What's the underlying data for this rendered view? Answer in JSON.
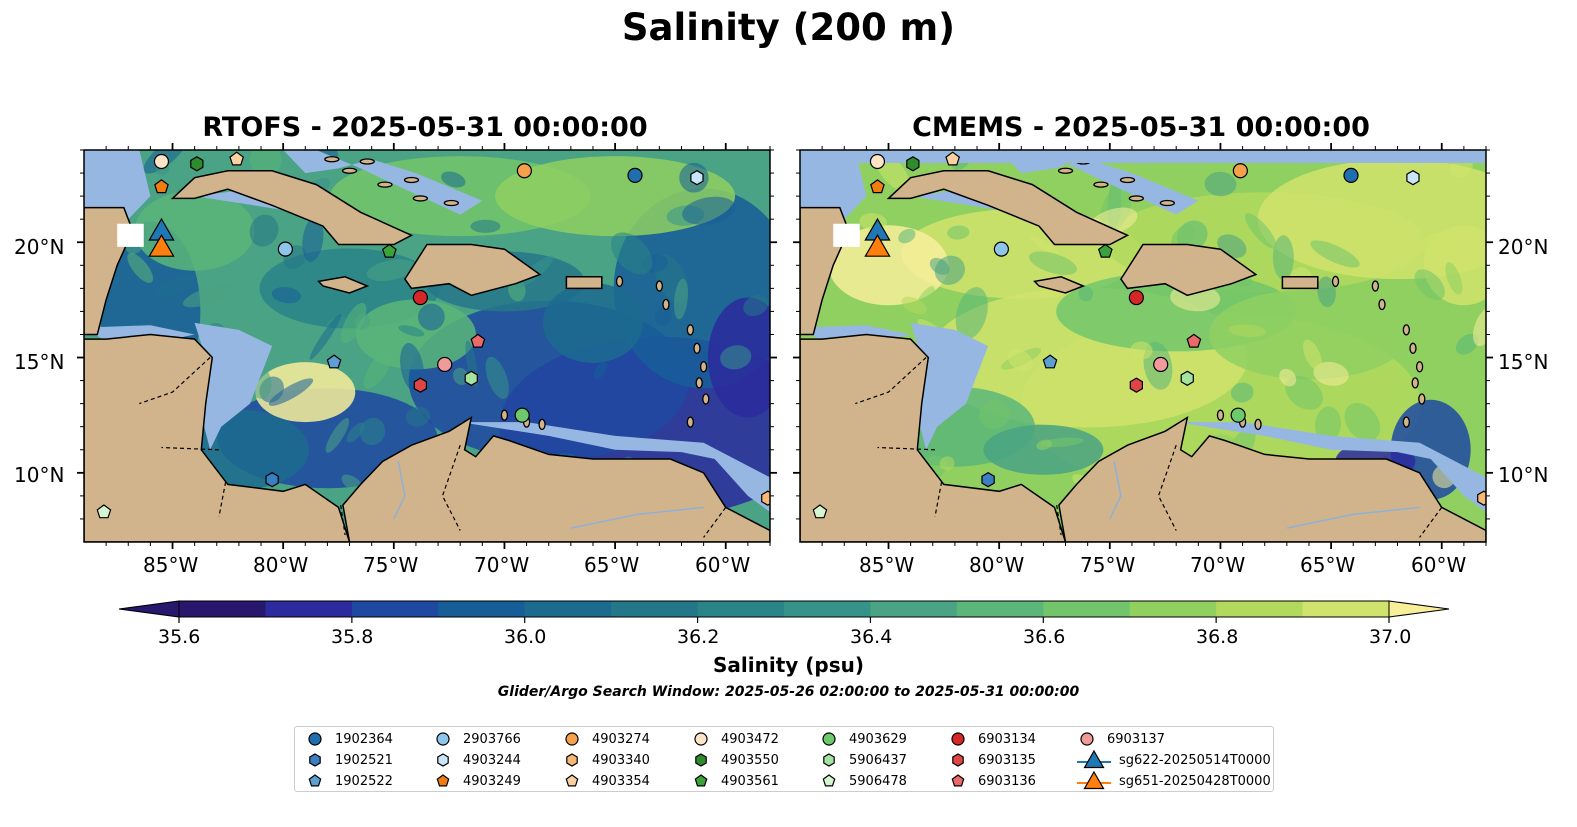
{
  "title": "Salinity (200 m)",
  "maps": [
    {
      "title": "RTOFS - 2025-05-31 00:00:00"
    },
    {
      "title": "CMEMS - 2025-05-31 00:00:00"
    }
  ],
  "axes": {
    "lon_ticks": [
      "85°W",
      "80°W",
      "75°W",
      "70°W",
      "65°W",
      "60°W"
    ],
    "lat_ticks": [
      "20°N",
      "15°N",
      "10°N"
    ]
  },
  "colorbar": {
    "label": "Salinity (psu)",
    "ticks": [
      "35.6",
      "35.8",
      "36.0",
      "36.2",
      "36.4",
      "36.6",
      "36.8",
      "37.0"
    ],
    "range": [
      35.6,
      37.0
    ],
    "step": 0.1,
    "extend": "both",
    "colors": [
      "#27186e",
      "#2b2a9e",
      "#1f49a1",
      "#175e99",
      "#1c6b8f",
      "#247789",
      "#2a8488",
      "#36938a",
      "#4aa384",
      "#5ab679",
      "#72c56a",
      "#8fd061",
      "#b0d95d",
      "#d0e36c",
      "#f8ef9b"
    ]
  },
  "search_window": "Glider/Argo Search Window: 2025-05-26 02:00:00 to 2025-05-31 00:00:00",
  "legend": {
    "items": [
      {
        "label": "1902364",
        "marker": "circle",
        "color": "#1f6fb0"
      },
      {
        "label": "1902521",
        "marker": "hexagon",
        "color": "#3a7fc1"
      },
      {
        "label": "1902522",
        "marker": "pentagon",
        "color": "#5d9fd0"
      },
      {
        "label": "2903766",
        "marker": "circle",
        "color": "#8ec6ea"
      },
      {
        "label": "4903244",
        "marker": "hexagon",
        "color": "#c9e6f7"
      },
      {
        "label": "4903249",
        "marker": "pentagon",
        "color": "#f07c12"
      },
      {
        "label": "4903274",
        "marker": "circle",
        "color": "#f5a04a"
      },
      {
        "label": "4903340",
        "marker": "hexagon",
        "color": "#f7b877"
      },
      {
        "label": "4903354",
        "marker": "pentagon",
        "color": "#fbd1a2"
      },
      {
        "label": "4903472",
        "marker": "circle",
        "color": "#fde3c8"
      },
      {
        "label": "4903550",
        "marker": "hexagon",
        "color": "#2e8b2e"
      },
      {
        "label": "4903561",
        "marker": "pentagon",
        "color": "#3ca33c"
      },
      {
        "label": "4903629",
        "marker": "circle",
        "color": "#6cc96c"
      },
      {
        "label": "5906437",
        "marker": "hexagon",
        "color": "#a5e3a0"
      },
      {
        "label": "5906478",
        "marker": "pentagon",
        "color": "#d4f5cf"
      },
      {
        "label": "6903134",
        "marker": "circle",
        "color": "#d62728"
      },
      {
        "label": "6903135",
        "marker": "hexagon",
        "color": "#e04545"
      },
      {
        "label": "6903136",
        "marker": "pentagon",
        "color": "#ea6a6a"
      },
      {
        "label": "6903137",
        "marker": "circle",
        "color": "#f09a9a"
      },
      {
        "label": "sg622-20250514T0000",
        "marker": "triangle",
        "color": "#1f77b4"
      },
      {
        "label": "sg651-20250428T0000",
        "marker": "triangle",
        "color": "#ff7f0e"
      }
    ]
  },
  "map_extent": {
    "lon": [
      -89,
      -58
    ],
    "lat": [
      7,
      24
    ]
  },
  "platform_positions": [
    {
      "id": "4903472",
      "lon": -85.5,
      "lat": 23.5
    },
    {
      "id": "4903550",
      "lon": -83.9,
      "lat": 23.4
    },
    {
      "id": "4903354",
      "lon": -82.1,
      "lat": 23.6
    },
    {
      "id": "4903249",
      "lon": -85.5,
      "lat": 22.4
    },
    {
      "id": "4903274",
      "lon": -69.1,
      "lat": 23.1
    },
    {
      "id": "1902364",
      "lon": -64.1,
      "lat": 22.9
    },
    {
      "id": "4903244",
      "lon": -61.3,
      "lat": 22.8
    },
    {
      "id": "2903766",
      "lon": -79.9,
      "lat": 19.7
    },
    {
      "id": "4903561",
      "lon": -75.2,
      "lat": 19.6
    },
    {
      "id": "6903134",
      "lon": -73.8,
      "lat": 17.6
    },
    {
      "id": "6903136",
      "lon": -71.2,
      "lat": 15.7
    },
    {
      "id": "1902522",
      "lon": -77.7,
      "lat": 14.8
    },
    {
      "id": "6903137",
      "lon": -72.7,
      "lat": 14.7
    },
    {
      "id": "5906437",
      "lon": -71.5,
      "lat": 14.1
    },
    {
      "id": "6903135",
      "lon": -73.8,
      "lat": 13.8
    },
    {
      "id": "4903629",
      "lon": -69.2,
      "lat": 12.5
    },
    {
      "id": "1902521",
      "lon": -80.5,
      "lat": 9.7
    },
    {
      "id": "5906478",
      "lon": -88.1,
      "lat": 8.3
    },
    {
      "id": "4903340",
      "lon": -58.1,
      "lat": 8.9
    },
    {
      "id": "sg622-20250514T0000",
      "lon": -85.5,
      "lat": 20.4
    },
    {
      "id": "sg651-20250428T0000",
      "lon": -85.5,
      "lat": 19.7
    }
  ]
}
